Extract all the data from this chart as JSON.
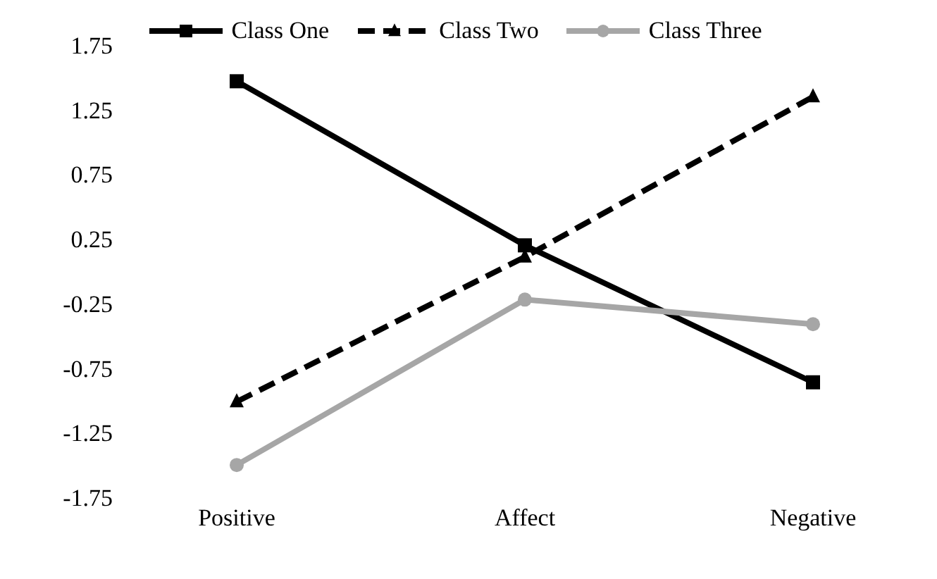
{
  "chart_data": {
    "type": "line",
    "categories": [
      "Positive",
      "Affect",
      "Negative"
    ],
    "series": [
      {
        "name": "Class One",
        "color": "#000000",
        "marker": "square",
        "line_style": "solid",
        "values": [
          1.47,
          0.2,
          -0.86
        ]
      },
      {
        "name": "Class Two",
        "color": "#000000",
        "marker": "triangle",
        "line_style": "dashed",
        "values": [
          -1.01,
          0.11,
          1.35
        ]
      },
      {
        "name": "Class Three",
        "color": "#a6a6a6",
        "marker": "circle",
        "line_style": "solid",
        "values": [
          -1.5,
          -0.22,
          -0.41
        ]
      }
    ],
    "ylim": [
      -1.75,
      1.75
    ],
    "yticks": [
      -1.75,
      -1.25,
      -0.75,
      -0.25,
      0.25,
      0.75,
      1.25,
      1.75
    ],
    "grid": false,
    "legend": "top"
  }
}
